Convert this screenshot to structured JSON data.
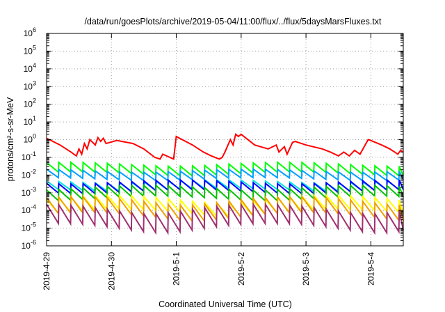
{
  "chart_data": {
    "type": "line",
    "title": "/data/run/goesPlots/archive/2019-05-04/11:00/flux/../flux/5daysMarsFluxes.txt",
    "xlabel": "Coordinated Universal Time (UTC)",
    "ylabel": "protons/cm²-s-sr-MeV",
    "x_scale": "time",
    "y_scale": "log",
    "xlim": [
      "2019-04-29T00:00",
      "2019-05-04T12:00"
    ],
    "ylim": [
      1e-06,
      1000000.0
    ],
    "grid": true,
    "legend": "none",
    "x_ticks": [
      {
        "value": "2019-04-29T00:00",
        "label": "2019-4-29"
      },
      {
        "value": "2019-04-30T00:00",
        "label": "2019-4-30"
      },
      {
        "value": "2019-05-01T00:00",
        "label": "2019-5-1"
      },
      {
        "value": "2019-05-02T00:00",
        "label": "2019-5-2"
      },
      {
        "value": "2019-05-03T00:00",
        "label": "2019-5-3"
      },
      {
        "value": "2019-05-04T00:00",
        "label": "2019-5-4"
      }
    ],
    "y_ticks": [
      {
        "value": 1e-06,
        "base": "10",
        "exp": "-6"
      },
      {
        "value": 1e-05,
        "base": "10",
        "exp": "-5"
      },
      {
        "value": 0.0001,
        "base": "10",
        "exp": "-4"
      },
      {
        "value": 0.001,
        "base": "10",
        "exp": "-3"
      },
      {
        "value": 0.01,
        "base": "10",
        "exp": "-2"
      },
      {
        "value": 0.1,
        "base": "10",
        "exp": "-1"
      },
      {
        "value": 1.0,
        "base": "10",
        "exp": "0"
      },
      {
        "value": 10.0,
        "base": "10",
        "exp": "1"
      },
      {
        "value": 100.0,
        "base": "10",
        "exp": "2"
      },
      {
        "value": 1000.0,
        "base": "10",
        "exp": "3"
      },
      {
        "value": 10000.0,
        "base": "10",
        "exp": "4"
      },
      {
        "value": 100000.0,
        "base": "10",
        "exp": "5"
      },
      {
        "value": 1000000.0,
        "base": "10",
        "exp": "6"
      }
    ],
    "series": [
      {
        "color": "#ff0000",
        "x": [
          "2019-04-29T00:00",
          "2019-04-29T05:00",
          "2019-04-29T09:00",
          "2019-04-29T11:00",
          "2019-04-29T12:00",
          "2019-04-29T13:00",
          "2019-04-29T14:00",
          "2019-04-29T15:00",
          "2019-04-29T16:00",
          "2019-04-29T18:00",
          "2019-04-29T19:00",
          "2019-04-29T20:00",
          "2019-04-29T21:00",
          "2019-04-29T22:00",
          "2019-04-30T02:00",
          "2019-04-30T08:00",
          "2019-04-30T12:00",
          "2019-04-30T16:00",
          "2019-04-30T18:00",
          "2019-04-30T19:00",
          "2019-04-30T23:00",
          "2019-05-01T00:00",
          "2019-05-01T06:00",
          "2019-05-01T10:00",
          "2019-05-01T13:00",
          "2019-05-01T15:00",
          "2019-05-01T16:00",
          "2019-05-01T17:00",
          "2019-05-01T18:00",
          "2019-05-01T20:00",
          "2019-05-01T21:00",
          "2019-05-01T22:00",
          "2019-05-01T23:00",
          "2019-05-02T00:00",
          "2019-05-02T05:00",
          "2019-05-02T10:00",
          "2019-05-02T13:00",
          "2019-05-02T14:00",
          "2019-05-02T16:00",
          "2019-05-02T17:00",
          "2019-05-02T19:00",
          "2019-05-02T20:00",
          "2019-05-03T00:00",
          "2019-05-03T06:00",
          "2019-05-03T09:00",
          "2019-05-03T12:00",
          "2019-05-03T14:00",
          "2019-05-03T16:00",
          "2019-05-03T18:00",
          "2019-05-03T20:00",
          "2019-05-03T23:00",
          "2019-05-04T00:00",
          "2019-05-04T04:00",
          "2019-05-04T07:00",
          "2019-05-04T10:00",
          "2019-05-04T11:00",
          "2019-05-04T12:00"
        ],
        "y": [
          1.2,
          0.5,
          0.2,
          0.12,
          0.3,
          0.15,
          0.6,
          0.3,
          1.0,
          0.5,
          1.3,
          0.8,
          1.2,
          0.6,
          0.9,
          0.6,
          0.3,
          0.1,
          0.08,
          0.15,
          0.08,
          1.5,
          0.5,
          0.2,
          0.12,
          0.09,
          0.08,
          0.1,
          0.2,
          1.0,
          0.5,
          2.0,
          1.5,
          2.0,
          0.5,
          0.3,
          0.5,
          0.2,
          0.4,
          0.15,
          0.7,
          0.8,
          0.5,
          0.3,
          0.2,
          0.12,
          0.2,
          0.12,
          0.25,
          0.15,
          1.0,
          0.9,
          0.5,
          0.3,
          0.15,
          0.25,
          0.2
        ]
      },
      {
        "color": "#00ff00",
        "base": 0.012,
        "jump": 3.5,
        "amp": 0.25,
        "period": 4.5
      },
      {
        "color": "#00a0ff",
        "base": 0.006,
        "jump": 3.0,
        "amp": 0.2,
        "period": 4.5
      },
      {
        "color": "#00e0e0",
        "base": 0.0015,
        "jump": 3.0,
        "amp": 0.2,
        "period": 4.5
      },
      {
        "color": "#0000ff",
        "base": 0.0012,
        "jump": 3.5,
        "amp": 0.25,
        "period": 4.5
      },
      {
        "color": "#00c000",
        "base": 0.0005,
        "jump": 4.0,
        "amp": 0.3,
        "period": 4.5
      },
      {
        "color": "#ffff00",
        "base": 8e-05,
        "jump": 6.0,
        "amp": 0.45,
        "period": 4.5
      },
      {
        "color": "#f0a000",
        "base": 5e-05,
        "jump": 8.0,
        "amp": 0.5,
        "period": 4.5
      },
      {
        "color": "#a03070",
        "base": 1.2e-05,
        "jump": 12.0,
        "amp": 0.55,
        "period": 4.5
      }
    ]
  }
}
